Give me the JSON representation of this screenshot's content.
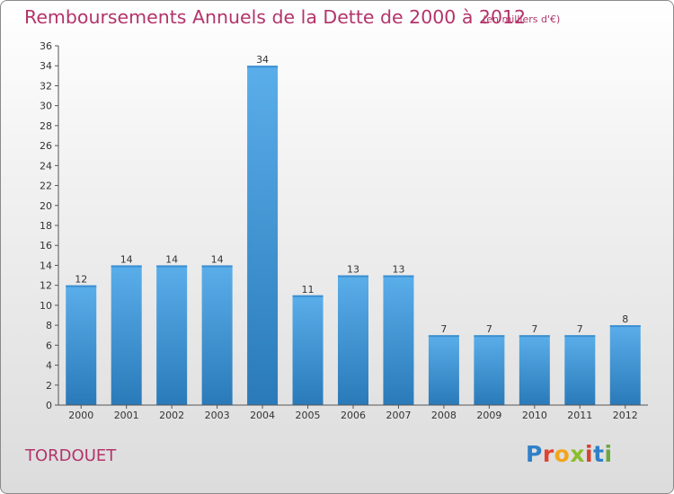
{
  "header": {
    "title": "Remboursements Annuels de la Dette de 2000 à 2012",
    "subtitle": "(en milliers d'€)"
  },
  "footer": {
    "commune": "TORDOUET",
    "logo": "Proxiti"
  },
  "colors": {
    "title": "#b3346b",
    "bar_light": "#5aaeea",
    "bar_dark": "#2a7ab9"
  },
  "chart_data": {
    "type": "bar",
    "categories": [
      "2000",
      "2001",
      "2002",
      "2003",
      "2004",
      "2005",
      "2006",
      "2007",
      "2008",
      "2009",
      "2010",
      "2011",
      "2012"
    ],
    "values": [
      12,
      14,
      14,
      14,
      34,
      11,
      13,
      13,
      7,
      7,
      7,
      7,
      8
    ],
    "ylim": [
      0,
      36
    ],
    "ytick_step": 2,
    "grid": false,
    "data_labels": true
  }
}
